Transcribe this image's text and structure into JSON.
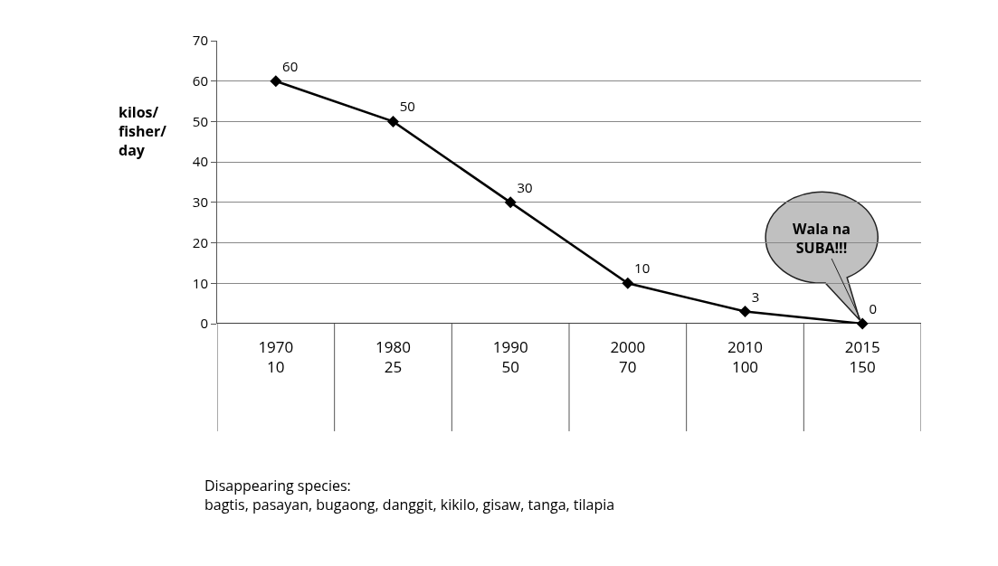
{
  "chart_data": {
    "type": "line",
    "ylabel": "kilos/\nfisher/\nday",
    "categories": [
      "1970\n10",
      "1980\n25",
      "1990\n50",
      "2000\n70",
      "2010\n100",
      "2015\n150"
    ],
    "series": [
      {
        "color": "#000000",
        "values": [
          60,
          50,
          30,
          10,
          3,
          0
        ]
      }
    ],
    "ylim": [
      0,
      70
    ],
    "yticks": [
      0,
      10,
      20,
      30,
      40,
      50,
      60,
      70
    ],
    "grid": "y",
    "marker": "diamond",
    "line_style": "solid",
    "data_labels": true,
    "annotations": [
      {
        "text": "Wala na SUBA!!!",
        "x": "2015\n150",
        "y": 0
      },
      "Disappearing species:\nbagtis, pasayan, bugaong, danggit, kikilo, gisaw, tanga, tilapia"
    ]
  }
}
